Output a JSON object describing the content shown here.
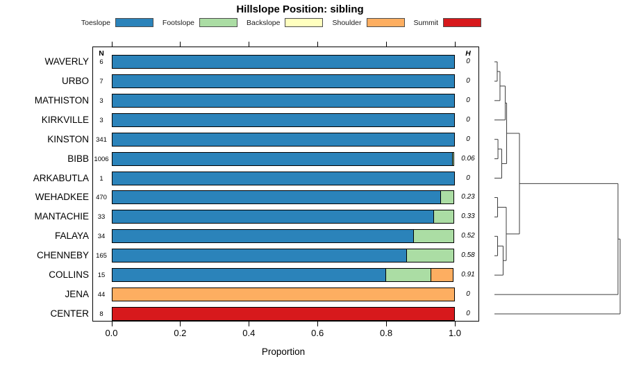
{
  "title": "Hillslope Position: sibling",
  "columns": {
    "n_header": "N",
    "h_header": "H"
  },
  "axis": {
    "xlabel": "Proportion",
    "tick_labels": [
      "0.0",
      "0.2",
      "0.4",
      "0.6",
      "0.8",
      "1.0"
    ],
    "tick_values": [
      0,
      0.2,
      0.4,
      0.6,
      0.8,
      1.0
    ]
  },
  "legend": [
    {
      "label": "Toeslope",
      "color": "#2B83BA"
    },
    {
      "label": "Footslope",
      "color": "#ABDDA4"
    },
    {
      "label": "Backslope",
      "color": "#FFFFBF"
    },
    {
      "label": "Shoulder",
      "color": "#FDAE61"
    },
    {
      "label": "Summit",
      "color": "#D7191C"
    }
  ],
  "chart_data": {
    "type": "bar",
    "subtype": "horizontal-stacked-proportion",
    "title": "Hillslope Position: sibling",
    "xlabel": "Proportion",
    "xlim": [
      0,
      1
    ],
    "grid": false,
    "legend_position": "top",
    "series_colors": {
      "Toeslope": "#2B83BA",
      "Footslope": "#ABDDA4",
      "Backslope": "#FFFFBF",
      "Shoulder": "#FDAE61",
      "Summit": "#D7191C"
    },
    "rows": [
      {
        "label": "WAVERLY",
        "n": 6,
        "h": "0",
        "segments": [
          {
            "position": "Toeslope",
            "proportion": 1.0
          }
        ]
      },
      {
        "label": "URBO",
        "n": 7,
        "h": "0",
        "segments": [
          {
            "position": "Toeslope",
            "proportion": 1.0
          }
        ]
      },
      {
        "label": "MATHISTON",
        "n": 3,
        "h": "0",
        "segments": [
          {
            "position": "Toeslope",
            "proportion": 1.0
          }
        ]
      },
      {
        "label": "KIRKVILLE",
        "n": 3,
        "h": "0",
        "segments": [
          {
            "position": "Toeslope",
            "proportion": 1.0
          }
        ]
      },
      {
        "label": "KINSTON",
        "n": 341,
        "h": "0",
        "segments": [
          {
            "position": "Toeslope",
            "proportion": 1.0
          }
        ]
      },
      {
        "label": "BIBB",
        "n": 1006,
        "h": "0.06",
        "segments": [
          {
            "position": "Toeslope",
            "proportion": 0.993
          },
          {
            "position": "Footslope",
            "proportion": 0.007
          }
        ]
      },
      {
        "label": "ARKABUTLA",
        "n": 1,
        "h": "0",
        "segments": [
          {
            "position": "Toeslope",
            "proportion": 1.0
          }
        ]
      },
      {
        "label": "WEHADKEE",
        "n": 470,
        "h": "0.23",
        "segments": [
          {
            "position": "Toeslope",
            "proportion": 0.96
          },
          {
            "position": "Footslope",
            "proportion": 0.04
          }
        ]
      },
      {
        "label": "MANTACHIE",
        "n": 33,
        "h": "0.33",
        "segments": [
          {
            "position": "Toeslope",
            "proportion": 0.94
          },
          {
            "position": "Footslope",
            "proportion": 0.06
          }
        ]
      },
      {
        "label": "FALAYA",
        "n": 34,
        "h": "0.52",
        "segments": [
          {
            "position": "Toeslope",
            "proportion": 0.88
          },
          {
            "position": "Footslope",
            "proportion": 0.12
          }
        ]
      },
      {
        "label": "CHENNEBY",
        "n": 165,
        "h": "0.58",
        "segments": [
          {
            "position": "Toeslope",
            "proportion": 0.86
          },
          {
            "position": "Footslope",
            "proportion": 0.14
          }
        ]
      },
      {
        "label": "COLLINS",
        "n": 15,
        "h": "0.91",
        "segments": [
          {
            "position": "Toeslope",
            "proportion": 0.8
          },
          {
            "position": "Footslope",
            "proportion": 0.133
          },
          {
            "position": "Shoulder",
            "proportion": 0.067
          }
        ]
      },
      {
        "label": "JENA",
        "n": 44,
        "h": "0",
        "segments": [
          {
            "position": "Shoulder",
            "proportion": 1.0
          }
        ]
      },
      {
        "label": "CENTER",
        "n": 8,
        "h": "0",
        "segments": [
          {
            "position": "Summit",
            "proportion": 1.0
          }
        ]
      }
    ],
    "dendrogram": {
      "orientation": "right",
      "leaves": [
        "WAVERLY",
        "URBO",
        "MATHISTON",
        "KIRKVILLE",
        "KINSTON",
        "BIBB",
        "ARKABUTLA",
        "WEHADKEE",
        "MANTACHIE",
        "FALAYA",
        "CHENNEBY",
        "COLLINS",
        "JENA",
        "CENTER"
      ],
      "merges": [
        {
          "id": "A",
          "a": "WAVERLY",
          "b": "URBO",
          "height": 0.022
        },
        {
          "id": "B",
          "a": "A",
          "b": "MATHISTON",
          "height": 0.044
        },
        {
          "id": "C",
          "a": "B",
          "b": "KIRKVILLE",
          "height": 0.086
        },
        {
          "id": "D",
          "a": "KINSTON",
          "b": "BIBB",
          "height": 0.028
        },
        {
          "id": "E",
          "a": "D",
          "b": "ARKABUTLA",
          "height": 0.058
        },
        {
          "id": "F",
          "a": "C",
          "b": "E",
          "height": 0.097
        },
        {
          "id": "G",
          "a": "WEHADKEE",
          "b": "MANTACHIE",
          "height": 0.025
        },
        {
          "id": "H2",
          "a": "FALAYA",
          "b": "CHENNEBY",
          "height": 0.025
        },
        {
          "id": "I",
          "a": "H2",
          "b": "COLLINS",
          "height": 0.069
        },
        {
          "id": "J",
          "a": "G",
          "b": "I",
          "height": 0.094
        },
        {
          "id": "K",
          "a": "F",
          "b": "J",
          "height": 0.199
        },
        {
          "id": "M",
          "a": "K",
          "b": "JENA",
          "height": 0.983
        },
        {
          "id": "R",
          "a": "M",
          "b": "CENTER",
          "height": 1.0
        }
      ]
    }
  }
}
